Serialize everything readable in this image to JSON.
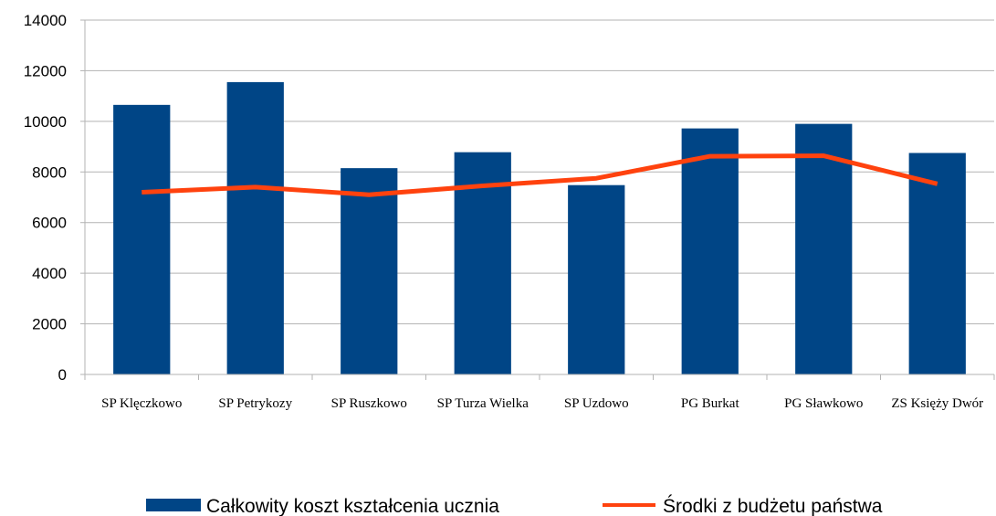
{
  "chart_data": {
    "type": "bar",
    "categories": [
      "SP Klęczkowo",
      "SP Petrykozy",
      "SP Ruszkowo",
      "SP Turza Wielka",
      "SP Uzdowo",
      "PG Burkat",
      "PG Sławkowo",
      "ZS Księży Dwór"
    ],
    "series": [
      {
        "name": "Całkowity koszt kształcenia ucznia",
        "type": "bar",
        "color": "#004586",
        "values": [
          10650,
          11550,
          8150,
          8780,
          7480,
          9720,
          9900,
          8750
        ]
      },
      {
        "name": "Środki z budżetu państwa",
        "type": "line",
        "color": "#ff420e",
        "values": [
          7200,
          7400,
          7100,
          7450,
          7750,
          8620,
          8640,
          7530
        ]
      }
    ],
    "ylim": [
      0,
      14000
    ],
    "yticks": [
      "0",
      "2000",
      "4000",
      "6000",
      "8000",
      "10000",
      "12000",
      "14000"
    ],
    "grid": true,
    "legend_position": "bottom"
  }
}
